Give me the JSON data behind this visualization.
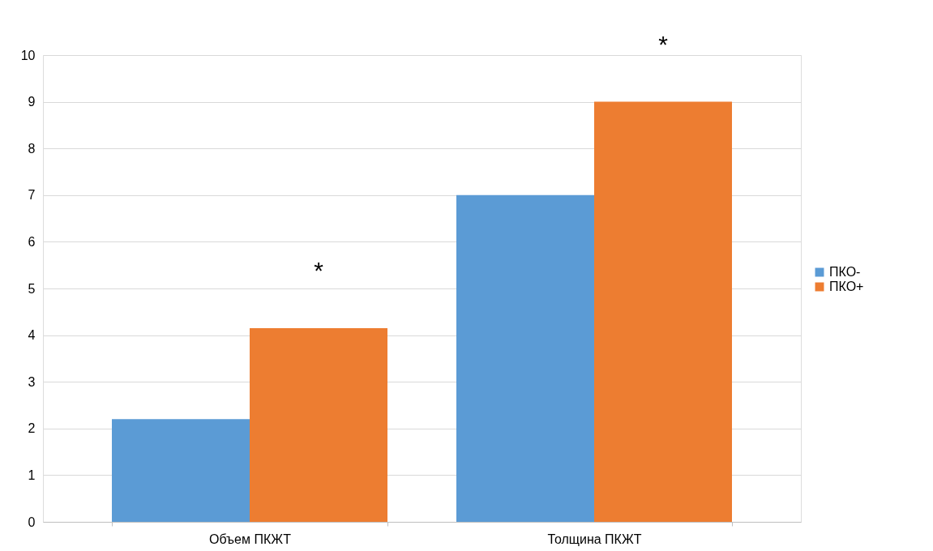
{
  "chart_data": {
    "type": "bar",
    "categories": [
      "Объем ПКЖТ",
      "Толщина ПКЖТ"
    ],
    "series": [
      {
        "name": "ПКО-",
        "color": "#5b9bd5",
        "values": [
          2.2,
          7
        ]
      },
      {
        "name": "ПКО+",
        "color": "#ed7d31",
        "values": [
          4.15,
          9
        ]
      }
    ],
    "ylim": [
      0,
      10
    ],
    "yticks": [
      0,
      1,
      2,
      3,
      4,
      5,
      6,
      7,
      8,
      9,
      10
    ],
    "grid": "y",
    "legend": "right",
    "annotations": [
      "*",
      "*"
    ]
  }
}
